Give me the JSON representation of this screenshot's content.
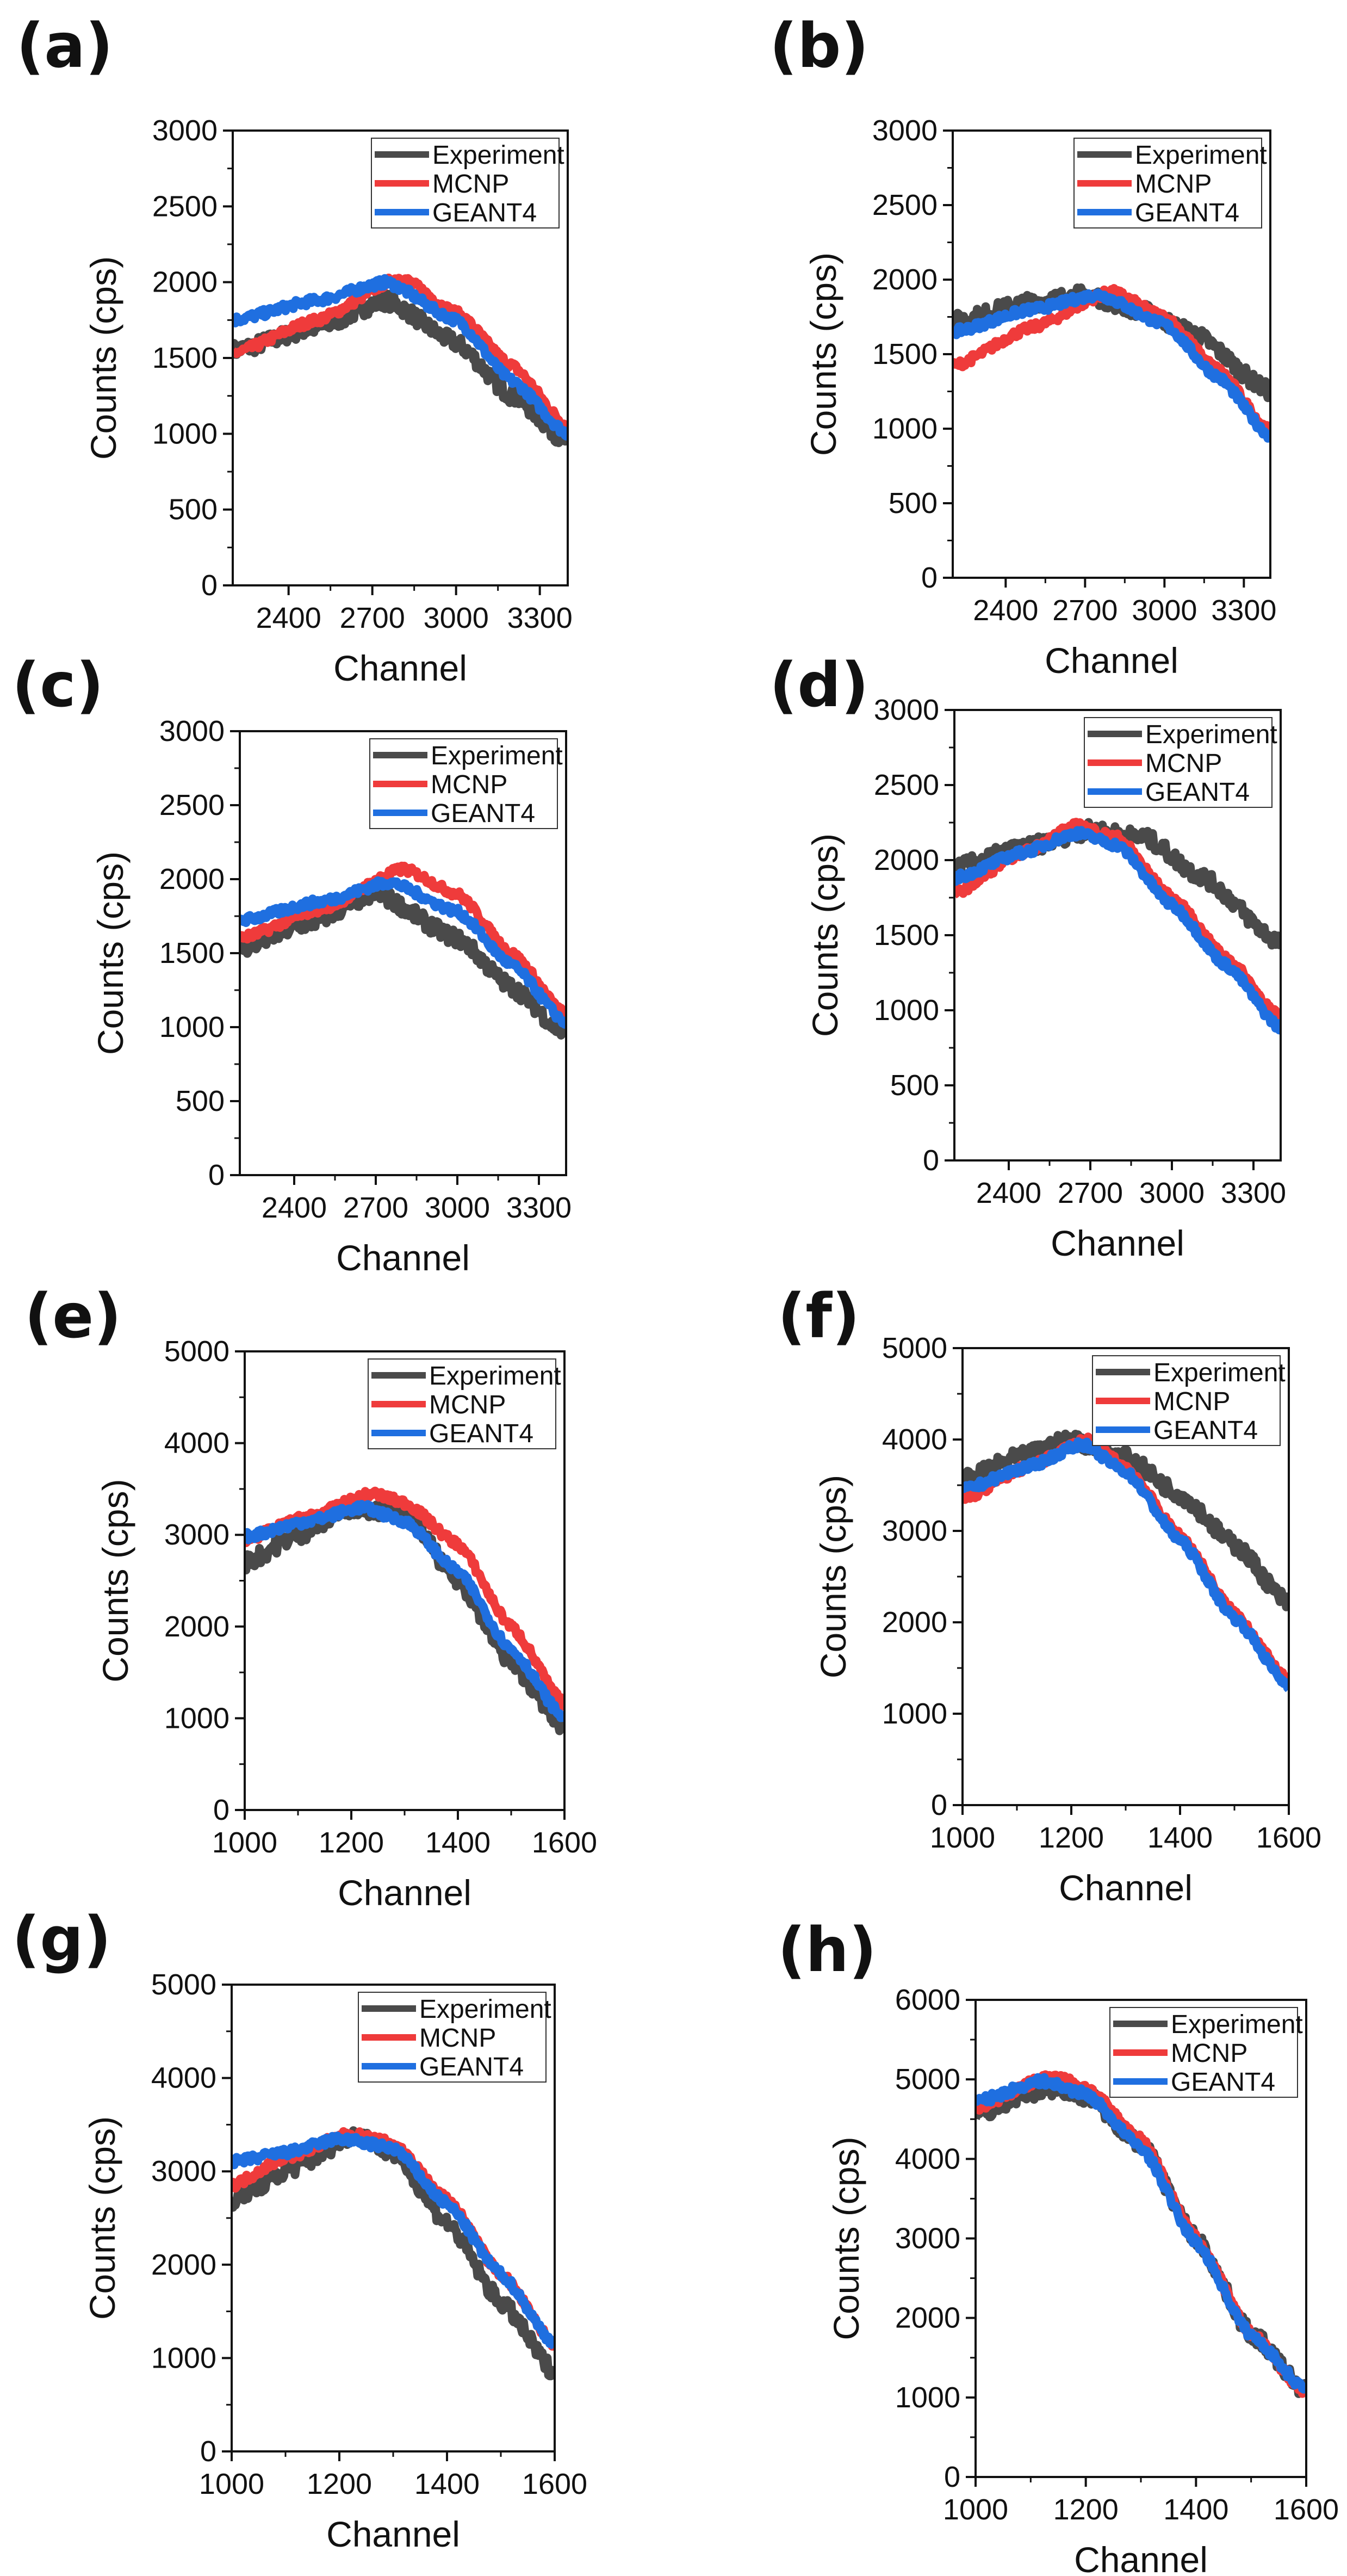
{
  "colors": {
    "Experiment": "#4a4a4a",
    "MCNP": "#ef3b3b",
    "GEANT4": "#1f6fe0"
  },
  "chart_data": [
    {
      "type": "line",
      "label": "(a)",
      "xlabel": "Channel",
      "ylabel": "Counts (cps)",
      "xlim": [
        2200,
        3400
      ],
      "ylim": [
        0,
        3000
      ],
      "xticks": [
        2400,
        2700,
        3000,
        3300
      ],
      "yticks": [
        0,
        500,
        1000,
        1500,
        2000,
        2500,
        3000
      ],
      "legend": [
        "Experiment",
        "MCNP",
        "GEANT4"
      ],
      "legend_position": "top-right",
      "series": [
        {
          "name": "Experiment",
          "x": [
            2200,
            2500,
            2750,
            3000,
            3200,
            3400
          ],
          "y": [
            1550,
            1700,
            1880,
            1600,
            1250,
            950
          ]
        },
        {
          "name": "MCNP",
          "x": [
            2200,
            2500,
            2800,
            3000,
            3200,
            3400
          ],
          "y": [
            1530,
            1750,
            2030,
            1800,
            1450,
            1050
          ]
        },
        {
          "name": "GEANT4",
          "x": [
            2200,
            2500,
            2750,
            3000,
            3200,
            3400
          ],
          "y": [
            1750,
            1880,
            2000,
            1750,
            1350,
            1000
          ]
        }
      ]
    },
    {
      "type": "line",
      "label": "(b)",
      "xlabel": "Channel",
      "ylabel": "Counts (cps)",
      "xlim": [
        2200,
        3400
      ],
      "ylim": [
        0,
        3000
      ],
      "xticks": [
        2400,
        2700,
        3000,
        3300
      ],
      "yticks": [
        0,
        500,
        1000,
        1500,
        2000,
        2500,
        3000
      ],
      "legend": [
        "Experiment",
        "MCNP",
        "GEANT4"
      ],
      "legend_position": "top-right",
      "series": [
        {
          "name": "Experiment",
          "x": [
            2200,
            2500,
            2700,
            2900,
            3100,
            3400
          ],
          "y": [
            1720,
            1850,
            1900,
            1800,
            1650,
            1250
          ]
        },
        {
          "name": "MCNP",
          "x": [
            2200,
            2500,
            2800,
            3000,
            3200,
            3400
          ],
          "y": [
            1420,
            1680,
            1920,
            1750,
            1400,
            980
          ]
        },
        {
          "name": "GEANT4",
          "x": [
            2200,
            2500,
            2750,
            3000,
            3200,
            3400
          ],
          "y": [
            1650,
            1800,
            1900,
            1700,
            1350,
            950
          ]
        }
      ]
    },
    {
      "type": "line",
      "label": "(c)",
      "xlabel": "Channel",
      "ylabel": "Counts (cps)",
      "xlim": [
        2200,
        3400
      ],
      "ylim": [
        0,
        3000
      ],
      "xticks": [
        2400,
        2700,
        3000,
        3300
      ],
      "yticks": [
        0,
        500,
        1000,
        1500,
        2000,
        2500,
        3000
      ],
      "legend": [
        "Experiment",
        "MCNP",
        "GEANT4"
      ],
      "legend_position": "top-right",
      "series": [
        {
          "name": "Experiment",
          "x": [
            2200,
            2450,
            2700,
            3000,
            3200,
            3400
          ],
          "y": [
            1530,
            1700,
            1900,
            1600,
            1270,
            950
          ]
        },
        {
          "name": "MCNP",
          "x": [
            2200,
            2500,
            2800,
            3000,
            3200,
            3400
          ],
          "y": [
            1600,
            1800,
            2070,
            1900,
            1500,
            1080
          ]
        },
        {
          "name": "GEANT4",
          "x": [
            2200,
            2500,
            2750,
            3000,
            3200,
            3400
          ],
          "y": [
            1720,
            1850,
            1980,
            1780,
            1420,
            1030
          ]
        }
      ]
    },
    {
      "type": "line",
      "label": "(d)",
      "xlabel": "Channel",
      "ylabel": "Counts (cps)",
      "xlim": [
        2200,
        3400
      ],
      "ylim": [
        0,
        3000
      ],
      "xticks": [
        2400,
        2700,
        3000,
        3300
      ],
      "yticks": [
        0,
        500,
        1000,
        1500,
        2000,
        2500,
        3000
      ],
      "legend": [
        "Experiment",
        "MCNP",
        "GEANT4"
      ],
      "legend_position": "top-right",
      "series": [
        {
          "name": "Experiment",
          "x": [
            2200,
            2450,
            2700,
            2900,
            3100,
            3400
          ],
          "y": [
            1950,
            2080,
            2200,
            2150,
            1900,
            1450
          ]
        },
        {
          "name": "MCNP",
          "x": [
            2200,
            2450,
            2650,
            2800,
            3000,
            3200,
            3400
          ],
          "y": [
            1780,
            2050,
            2230,
            2150,
            1750,
            1350,
            950
          ]
        },
        {
          "name": "GEANT4",
          "x": [
            2200,
            2450,
            2650,
            2800,
            3000,
            3200,
            3400
          ],
          "y": [
            1880,
            2050,
            2180,
            2100,
            1700,
            1300,
            880
          ]
        }
      ]
    },
    {
      "type": "line",
      "label": "(e)",
      "xlabel": "Channel",
      "ylabel": "Counts (cps)",
      "xlim": [
        1000,
        1600
      ],
      "ylim": [
        0,
        5000
      ],
      "xticks": [
        1000,
        1200,
        1400,
        1600
      ],
      "yticks": [
        0,
        1000,
        2000,
        3000,
        4000,
        5000
      ],
      "legend": [
        "Experiment",
        "MCNP",
        "GEANT4"
      ],
      "legend_position": "top-right",
      "series": [
        {
          "name": "Experiment",
          "x": [
            1000,
            1100,
            1200,
            1300,
            1400,
            1500,
            1600
          ],
          "y": [
            2700,
            3000,
            3300,
            3250,
            2500,
            1600,
            900
          ]
        },
        {
          "name": "MCNP",
          "x": [
            1000,
            1120,
            1240,
            1300,
            1400,
            1500,
            1600
          ],
          "y": [
            2950,
            3200,
            3450,
            3350,
            2900,
            2000,
            1150
          ]
        },
        {
          "name": "GEANT4",
          "x": [
            1000,
            1120,
            1220,
            1300,
            1400,
            1500,
            1600
          ],
          "y": [
            2980,
            3150,
            3300,
            3150,
            2600,
            1750,
            1000
          ]
        }
      ]
    },
    {
      "type": "line",
      "label": "(f)",
      "xlabel": "Channel",
      "ylabel": "Counts (cps)",
      "xlim": [
        1000,
        1600
      ],
      "ylim": [
        0,
        5000
      ],
      "xticks": [
        1000,
        1200,
        1400,
        1600
      ],
      "yticks": [
        0,
        1000,
        2000,
        3000,
        4000,
        5000
      ],
      "legend": [
        "Experiment",
        "MCNP",
        "GEANT4"
      ],
      "legend_position": "top-right",
      "series": [
        {
          "name": "Experiment",
          "x": [
            1000,
            1100,
            1200,
            1300,
            1400,
            1500,
            1600
          ],
          "y": [
            3550,
            3800,
            4000,
            3800,
            3400,
            2850,
            2200
          ]
        },
        {
          "name": "MCNP",
          "x": [
            1000,
            1120,
            1230,
            1300,
            1400,
            1500,
            1600
          ],
          "y": [
            3350,
            3700,
            4000,
            3700,
            2950,
            2100,
            1350
          ]
        },
        {
          "name": "GEANT4",
          "x": [
            1000,
            1120,
            1220,
            1300,
            1400,
            1500,
            1600
          ],
          "y": [
            3450,
            3700,
            3950,
            3650,
            2900,
            2050,
            1300
          ]
        }
      ]
    },
    {
      "type": "line",
      "label": "(g)",
      "xlabel": "Channel",
      "ylabel": "Counts (cps)",
      "xlim": [
        1000,
        1600
      ],
      "ylim": [
        0,
        5000
      ],
      "xticks": [
        1000,
        1200,
        1400,
        1600
      ],
      "yticks": [
        0,
        1000,
        2000,
        3000,
        4000,
        5000
      ],
      "legend": [
        "Experiment",
        "MCNP",
        "GEANT4"
      ],
      "legend_position": "top-right",
      "series": [
        {
          "name": "Experiment",
          "x": [
            1000,
            1120,
            1230,
            1300,
            1400,
            1500,
            1600
          ],
          "y": [
            2700,
            3050,
            3400,
            3200,
            2450,
            1600,
            850
          ]
        },
        {
          "name": "MCNP",
          "x": [
            1000,
            1100,
            1220,
            1300,
            1400,
            1500,
            1600
          ],
          "y": [
            2850,
            3150,
            3400,
            3300,
            2700,
            1900,
            1150
          ]
        },
        {
          "name": "GEANT4",
          "x": [
            1000,
            1100,
            1200,
            1300,
            1400,
            1500,
            1600
          ],
          "y": [
            3100,
            3200,
            3350,
            3250,
            2650,
            1900,
            1150
          ]
        }
      ]
    },
    {
      "type": "line",
      "label": "(h)",
      "xlabel": "Channel",
      "ylabel": "Counts (cps)",
      "xlim": [
        1000,
        1600
      ],
      "ylim": [
        0,
        6000
      ],
      "xticks": [
        1000,
        1200,
        1400,
        1600
      ],
      "yticks": [
        0,
        1000,
        2000,
        3000,
        4000,
        5000,
        6000
      ],
      "legend": [
        "Experiment",
        "MCNP",
        "GEANT4"
      ],
      "legend_position": "top-right",
      "series": [
        {
          "name": "Experiment",
          "x": [
            1000,
            1100,
            1150,
            1200,
            1300,
            1400,
            1500,
            1600
          ],
          "y": [
            4550,
            4850,
            4900,
            4800,
            4200,
            3000,
            1800,
            1080
          ]
        },
        {
          "name": "MCNP",
          "x": [
            1000,
            1140,
            1200,
            1300,
            1400,
            1500,
            1600
          ],
          "y": [
            4650,
            5050,
            4900,
            4250,
            3000,
            1800,
            1050
          ]
        },
        {
          "name": "GEANT4",
          "x": [
            1000,
            1120,
            1200,
            1300,
            1400,
            1500,
            1600
          ],
          "y": [
            4720,
            4980,
            4820,
            4150,
            2950,
            1780,
            1100
          ]
        }
      ]
    }
  ]
}
